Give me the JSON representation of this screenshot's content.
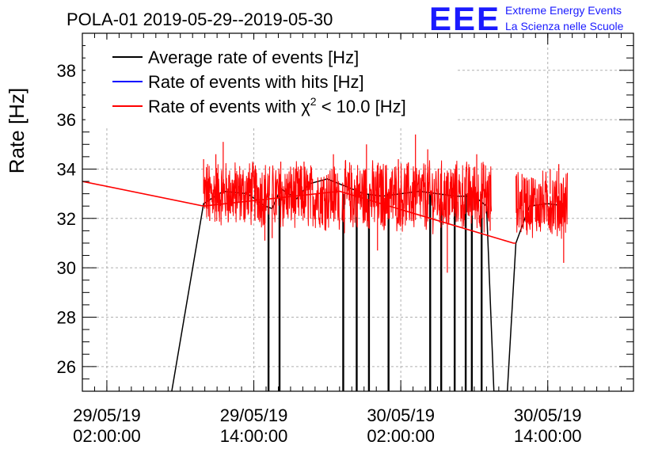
{
  "header": {
    "title": "POLA-01 2019-05-29--2019-05-30",
    "logo_text": "EEE",
    "logo_line1": "Extreme Energy Events",
    "logo_line2": "La Scienza nelle Scuole"
  },
  "colors": {
    "logo": "#1a1aff",
    "avg": "#000000",
    "hits": "#0000ff",
    "chi2": "#ff0000",
    "grid": "#b0b0b0"
  },
  "chart_data": {
    "type": "line",
    "ylabel": "Rate [Hz]",
    "xlabel": "",
    "ylim": [
      25,
      39.5
    ],
    "xlim_hours": [
      -2,
      43
    ],
    "yticks": [
      26,
      28,
      30,
      32,
      34,
      36,
      38
    ],
    "xticks": [
      {
        "hour": 0,
        "date": "29/05/19",
        "time": "02:00:00"
      },
      {
        "hour": 12,
        "date": "29/05/19",
        "time": "14:00:00"
      },
      {
        "hour": 24,
        "date": "30/05/19",
        "time": "02:00:00"
      },
      {
        "hour": 36,
        "date": "30/05/19",
        "time": "14:00:00"
      }
    ],
    "legend": {
      "placement": "top-left",
      "entries": [
        {
          "key": "avg",
          "label": "Average rate of events [Hz]"
        },
        {
          "key": "hits",
          "label": "Rate of events with hits [Hz]"
        },
        {
          "key": "chi2",
          "label_pre": "Rate of events with ",
          "label_chi": "χ",
          "label_sup": "2",
          "label_post": " < 10.0 [Hz]"
        }
      ]
    },
    "series": [
      {
        "name": "Average rate of events [Hz]",
        "key": "avg",
        "points": [
          [
            5.3,
            25
          ],
          [
            7.9,
            32.6
          ],
          [
            9.5,
            33.1
          ],
          [
            11.5,
            33.0
          ],
          [
            12.9,
            32.5
          ],
          [
            13.5,
            32.4
          ],
          [
            14.2,
            33.2
          ],
          [
            15.5,
            32.8
          ],
          [
            16.5,
            33.4
          ],
          [
            18.0,
            33.6
          ],
          [
            19.5,
            33.3
          ],
          [
            21.0,
            33.0
          ],
          [
            22.5,
            32.9
          ],
          [
            24.0,
            33.0
          ],
          [
            25.5,
            33.1
          ],
          [
            27.0,
            33.0
          ],
          [
            28.5,
            32.9
          ],
          [
            30.0,
            32.9
          ],
          [
            31.0,
            32.5
          ],
          [
            31.6,
            25
          ],
          [
            32.7,
            25
          ],
          [
            33.4,
            31.0
          ],
          [
            34.5,
            32.5
          ],
          [
            36.0,
            32.6
          ],
          [
            37.5,
            32.5
          ]
        ]
      },
      {
        "name": "Rate of events with hits [Hz]",
        "key": "hits",
        "points": []
      },
      {
        "name": "Rate of events with χ2 < 10.0 [Hz]",
        "key": "chi2",
        "baseline": [
          [
            -2,
            33.5
          ],
          [
            7.9,
            32.5
          ],
          [
            19,
            33.1
          ],
          [
            33.2,
            31.0
          ],
          [
            33.4,
            31.0
          ]
        ],
        "noisy_segments": [
          {
            "start": 7.9,
            "end": 13.3,
            "mean": 33.0,
            "amp": 1.2
          },
          {
            "start": 13.5,
            "end": 19.0,
            "mean": 32.9,
            "amp": 1.2
          },
          {
            "start": 19.2,
            "end": 31.4,
            "mean": 32.9,
            "amp": 1.3
          },
          {
            "start": 33.4,
            "end": 37.6,
            "mean": 32.6,
            "amp": 1.2
          }
        ],
        "points": [
          [
            7.9,
            34.4
          ],
          [
            8.4,
            31.9
          ],
          [
            8.9,
            34.6
          ],
          [
            9.5,
            35.1
          ],
          [
            10.5,
            32.2
          ],
          [
            12.9,
            31.1
          ],
          [
            13.5,
            31.2
          ],
          [
            14.2,
            34.3
          ],
          [
            16.1,
            34.3
          ],
          [
            18.5,
            34.6
          ],
          [
            21.2,
            35.0
          ],
          [
            22.1,
            30.7
          ],
          [
            23.8,
            34.4
          ],
          [
            25.2,
            35.4
          ],
          [
            26.2,
            34.8
          ],
          [
            27.8,
            29.8
          ],
          [
            28.5,
            34.1
          ],
          [
            30.2,
            34.6
          ],
          [
            31.3,
            31.5
          ],
          [
            33.9,
            33.8
          ],
          [
            36.2,
            34.0
          ],
          [
            36.9,
            34.2
          ],
          [
            37.3,
            30.2
          ]
        ]
      }
    ],
    "dips": [
      {
        "hour": 13.2,
        "min": 25
      },
      {
        "hour": 14.1,
        "min": 25
      },
      {
        "hour": 19.3,
        "min": 25
      },
      {
        "hour": 20.4,
        "min": 25
      },
      {
        "hour": 21.4,
        "min": 25
      },
      {
        "hour": 23.0,
        "min": 25
      },
      {
        "hour": 26.4,
        "min": 25
      },
      {
        "hour": 27.3,
        "min": 25
      },
      {
        "hour": 28.4,
        "min": 25
      },
      {
        "hour": 29.3,
        "min": 25
      },
      {
        "hour": 29.8,
        "min": 25
      },
      {
        "hour": 30.6,
        "min": 25
      }
    ]
  }
}
